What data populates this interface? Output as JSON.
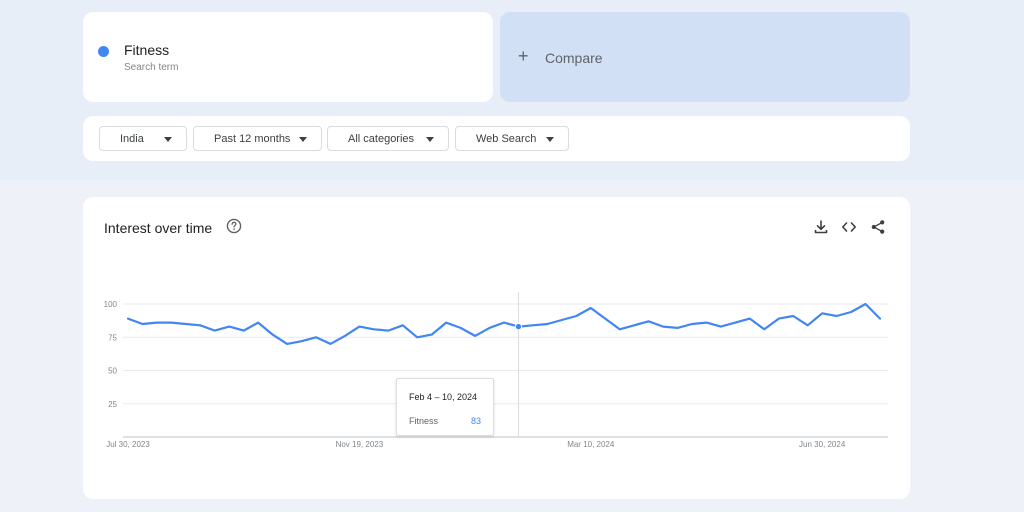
{
  "search_term": {
    "name": "Fitness",
    "subtitle": "Search term",
    "color": "#4285f4"
  },
  "compare": {
    "icon": "plus-icon",
    "label": "Compare"
  },
  "filters": {
    "geo": "India",
    "time": "Past 12 months",
    "category": "All categories",
    "property": "Web Search"
  },
  "chart_panel": {
    "title": "Interest over time",
    "icons": [
      "help-icon",
      "download-icon",
      "embed-icon",
      "share-icon"
    ]
  },
  "chart_data": {
    "type": "line",
    "x_labels": [
      "Jul 30, 2023",
      "Nov 19, 2023",
      "Mar 10, 2024",
      "Jun 30, 2024"
    ],
    "x_label_week_index": [
      0,
      16,
      32,
      48
    ],
    "y_ticks": [
      25,
      50,
      75,
      100
    ],
    "ylim": [
      0,
      100
    ],
    "grid": true,
    "series": [
      {
        "name": "Fitness",
        "color": "#4285f4",
        "values": [
          89,
          85,
          86,
          86,
          85,
          84,
          80,
          83,
          80,
          86,
          77,
          70,
          72,
          75,
          70,
          76,
          83,
          81,
          80,
          84,
          75,
          77,
          86,
          82,
          76,
          82,
          86,
          83,
          84,
          85,
          88,
          91,
          97,
          89,
          81,
          84,
          87,
          83,
          82,
          85,
          86,
          83,
          86,
          89,
          81,
          89,
          91,
          84,
          93,
          91,
          94,
          100,
          89
        ]
      }
    ],
    "hover": {
      "index": 27,
      "date": "Feb 4 – 10, 2024",
      "series": "Fitness",
      "value": "83"
    }
  }
}
